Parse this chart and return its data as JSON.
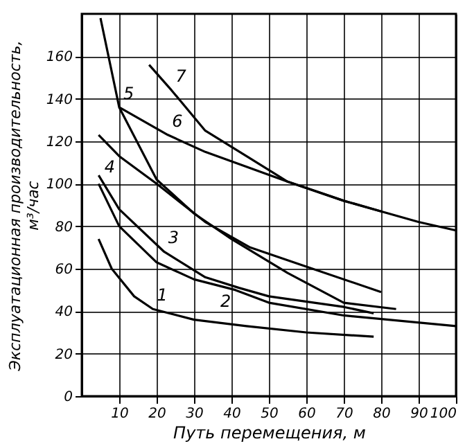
{
  "chart_data": {
    "type": "line",
    "xlabel": "Путь перемещения, м",
    "ylabel": "Эксплуатационная производительность,\nм³/час",
    "xlim": [
      0,
      100
    ],
    "ylim": [
      0,
      180
    ],
    "xticks": [
      10,
      20,
      30,
      40,
      50,
      60,
      70,
      80,
      90,
      100
    ],
    "yticks": [
      0,
      20,
      40,
      60,
      80,
      100,
      120,
      140,
      160
    ],
    "grid": true,
    "legend": false,
    "marker": "none",
    "line_style": "solid",
    "series": [
      {
        "name": "1",
        "color": "#000000",
        "x": [
          4.5,
          8,
          14,
          19,
          30,
          44,
          60,
          78
        ],
        "values": [
          74,
          60,
          47,
          41,
          36,
          33,
          30,
          28
        ]
      },
      {
        "name": "2",
        "color": "#000000",
        "x": [
          4.5,
          10,
          20,
          30,
          41,
          50,
          70,
          100
        ],
        "values": [
          100,
          80,
          63,
          55,
          50,
          44,
          38,
          33
        ]
      },
      {
        "name": "3",
        "color": "#000000",
        "x": [
          4.5,
          10,
          22,
          33,
          42,
          50,
          70,
          78
        ],
        "values": [
          104,
          88,
          68,
          56,
          51,
          47,
          42,
          39
        ]
      },
      {
        "name": "4",
        "color": "#000000",
        "x": [
          4.5,
          10,
          20,
          33,
          45,
          60,
          80
        ],
        "values": [
          123,
          113,
          100,
          82,
          70,
          61,
          49
        ]
      },
      {
        "name": "5",
        "color": "#000000",
        "x": [
          5,
          10,
          20,
          30,
          40,
          55,
          70,
          84
        ],
        "values": [
          178,
          136,
          102,
          86,
          74,
          58,
          44,
          41
        ]
      },
      {
        "name": "6",
        "color": "#000000",
        "x": [
          10,
          23,
          33,
          44,
          55,
          70,
          80,
          90,
          100
        ],
        "values": [
          136,
          123,
          115,
          108,
          101,
          92,
          87,
          82,
          78
        ]
      },
      {
        "name": "7",
        "color": "#000000",
        "x": [
          18,
          24,
          33,
          44,
          55,
          70,
          80
        ],
        "values": [
          156,
          144,
          125,
          113,
          101,
          92,
          87
        ]
      }
    ]
  }
}
